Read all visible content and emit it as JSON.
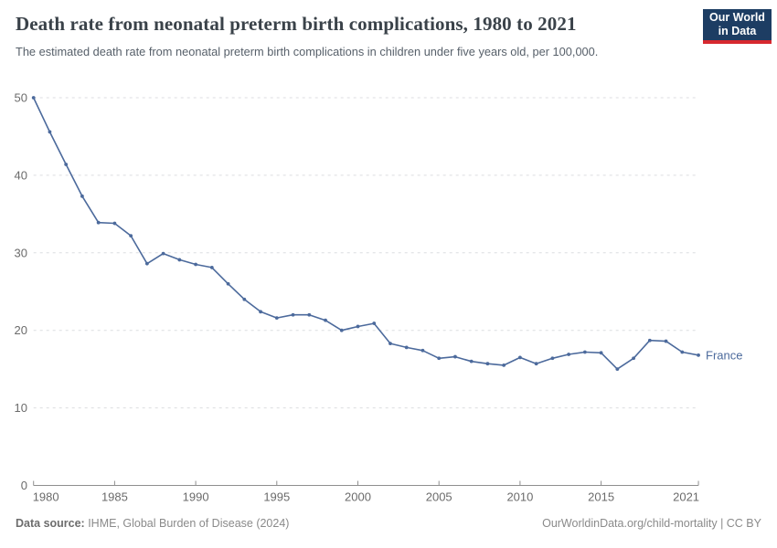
{
  "header": {
    "title": "Death rate from neonatal preterm birth complications, 1980 to 2021",
    "subtitle": "The estimated death rate from neonatal preterm birth complications in children under five years old, per 100,000.",
    "logo": {
      "line1": "Our World",
      "line2": "in Data"
    }
  },
  "chart_data": {
    "type": "line",
    "title": "Death rate from neonatal preterm birth complications, 1980 to 2021",
    "x": [
      1980,
      1981,
      1982,
      1983,
      1984,
      1985,
      1986,
      1987,
      1988,
      1989,
      1990,
      1991,
      1992,
      1993,
      1994,
      1995,
      1996,
      1997,
      1998,
      1999,
      2000,
      2001,
      2002,
      2003,
      2004,
      2005,
      2006,
      2007,
      2008,
      2009,
      2010,
      2011,
      2012,
      2013,
      2014,
      2015,
      2016,
      2017,
      2018,
      2019,
      2020,
      2021
    ],
    "series": [
      {
        "name": "France",
        "color": "#4C6A9C",
        "values": [
          50.0,
          45.6,
          41.4,
          37.3,
          33.9,
          33.8,
          32.2,
          28.6,
          29.9,
          29.1,
          28.5,
          28.1,
          26.0,
          24.0,
          22.4,
          21.6,
          22.0,
          22.0,
          21.3,
          20.0,
          20.5,
          20.9,
          18.3,
          17.8,
          17.4,
          16.4,
          16.6,
          16.0,
          15.7,
          15.5,
          16.5,
          15.7,
          16.4,
          16.9,
          17.2,
          17.1,
          15.0,
          16.4,
          18.7,
          18.6,
          17.2,
          16.8
        ]
      }
    ],
    "xlabel": "",
    "ylabel": "",
    "ylim": [
      0,
      50
    ],
    "yticks": [
      0,
      10,
      20,
      30,
      40,
      50
    ],
    "xticks": [
      1980,
      1985,
      1990,
      1995,
      2000,
      2005,
      2010,
      2015,
      2021
    ],
    "grid": "horizontal-dashed",
    "legend": "end-of-line-label",
    "end_label": "France"
  },
  "footer": {
    "source_label": "Data source:",
    "source_text": " IHME, Global Burden of Disease (2024)",
    "right_text": "OurWorldinData.org/child-mortality | CC BY"
  },
  "colors": {
    "line": "#4C6A9C",
    "grid": "#dcdde0",
    "axis": "#8f8f8f",
    "tick_label": "#6b6b6b",
    "title": "#3a4249",
    "subtitle": "#57606a",
    "logo_bg": "#1d3d63",
    "logo_red": "#d7282f"
  }
}
